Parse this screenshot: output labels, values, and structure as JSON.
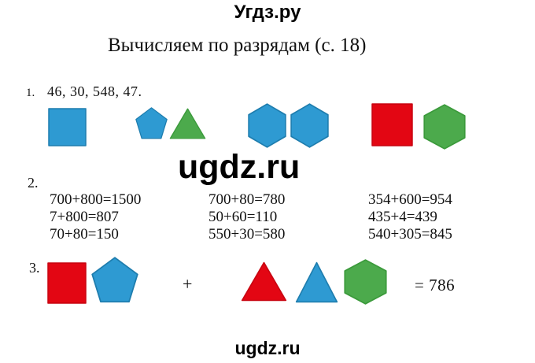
{
  "site": {
    "header": "Угдз.ру",
    "watermark": "ugdz.ru",
    "footer": "ugdz.ru"
  },
  "title": "Вычисляем по разрядам (с. 18)",
  "items": {
    "1": {
      "number": "1.",
      "text": "46, 30, 548, 47."
    },
    "2": {
      "number": "2."
    },
    "3": {
      "number": "3.",
      "plus": "+",
      "result": "= 786"
    }
  },
  "equations": {
    "col1": [
      "700+800=1500",
      "7+800=807",
      "70+80=150"
    ],
    "col2": [
      "700+80=780",
      "50+60=110",
      "550+30=580"
    ],
    "col3": [
      "354+600=954",
      "435+4=439",
      "540+305=845"
    ]
  },
  "shapes": {
    "row1": [
      {
        "type": "square",
        "color": "blue"
      },
      {
        "type": "pentagon",
        "color": "blue"
      },
      {
        "type": "triangle",
        "color": "green"
      },
      {
        "type": "hexagon",
        "color": "blue"
      },
      {
        "type": "hexagon",
        "color": "blue"
      },
      {
        "type": "square",
        "color": "red"
      },
      {
        "type": "hexagon",
        "color": "green"
      }
    ],
    "row3_left": [
      {
        "type": "square",
        "color": "red"
      },
      {
        "type": "pentagon",
        "color": "blue"
      }
    ],
    "row3_right": [
      {
        "type": "triangle",
        "color": "red"
      },
      {
        "type": "triangle",
        "color": "blue"
      },
      {
        "type": "hexagon",
        "color": "green"
      }
    ]
  },
  "colors": {
    "blue": {
      "fill": "#2E9AD2",
      "stroke": "#1E7DAE"
    },
    "green": {
      "fill": "#4CAA4C",
      "stroke": "#3B9A3B"
    },
    "red": {
      "fill": "#E30613",
      "stroke": "#C90511"
    }
  }
}
